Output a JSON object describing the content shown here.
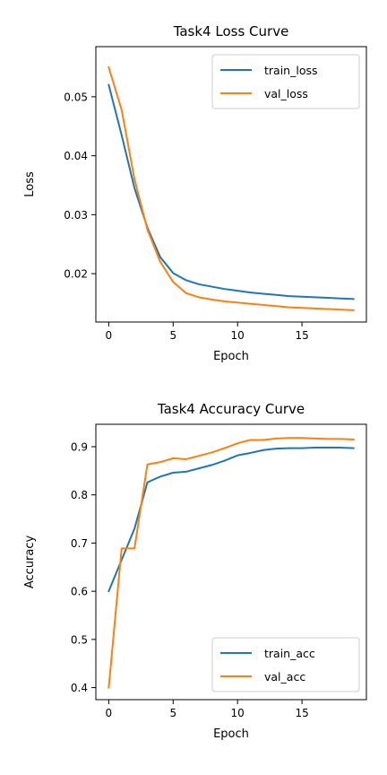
{
  "chart_data": [
    {
      "type": "line",
      "title": "Task4 Loss Curve",
      "xlabel": "Epoch",
      "ylabel": "Loss",
      "xlim": [
        -1,
        20
      ],
      "ylim": [
        0.0118,
        0.0585
      ],
      "xticks": [
        0,
        5,
        10,
        15
      ],
      "yticks": [
        0.02,
        0.03,
        0.04,
        0.05
      ],
      "ytick_labels": [
        "0.02",
        "0.03",
        "0.04",
        "0.05"
      ],
      "legend": "upper right",
      "x": [
        0,
        1,
        2,
        3,
        4,
        5,
        6,
        7,
        8,
        9,
        10,
        11,
        12,
        13,
        14,
        15,
        16,
        17,
        18,
        19
      ],
      "series": [
        {
          "name": "train_loss",
          "color": "#1f77b4",
          "values": [
            0.052,
            0.0435,
            0.0345,
            0.0278,
            0.0228,
            0.0201,
            0.0189,
            0.0182,
            0.0178,
            0.0174,
            0.0171,
            0.0168,
            0.0166,
            0.0164,
            0.0162,
            0.0161,
            0.016,
            0.0159,
            0.0158,
            0.0157
          ]
        },
        {
          "name": "val_loss",
          "color": "#ff7f0e",
          "values": [
            0.055,
            0.0478,
            0.036,
            0.0275,
            0.022,
            0.0186,
            0.0167,
            0.016,
            0.0156,
            0.0153,
            0.0151,
            0.0149,
            0.0147,
            0.0145,
            0.0143,
            0.0142,
            0.0141,
            0.014,
            0.0139,
            0.0138
          ]
        }
      ]
    },
    {
      "type": "line",
      "title": "Task4 Accuracy Curve",
      "xlabel": "Epoch",
      "ylabel": "Accuracy",
      "xlim": [
        -1,
        20
      ],
      "ylim": [
        0.375,
        0.9465
      ],
      "xticks": [
        0,
        5,
        10,
        15
      ],
      "yticks": [
        0.4,
        0.5,
        0.6,
        0.7,
        0.8,
        0.9
      ],
      "ytick_labels": [
        "0.4",
        "0.5",
        "0.6",
        "0.7",
        "0.8",
        "0.9"
      ],
      "legend": "lower right",
      "x": [
        0,
        1,
        2,
        3,
        4,
        5,
        6,
        7,
        8,
        9,
        10,
        11,
        12,
        13,
        14,
        15,
        16,
        17,
        18,
        19
      ],
      "series": [
        {
          "name": "train_acc",
          "color": "#1f77b4",
          "values": [
            0.6,
            0.665,
            0.73,
            0.826,
            0.838,
            0.846,
            0.848,
            0.855,
            0.862,
            0.871,
            0.882,
            0.887,
            0.893,
            0.896,
            0.897,
            0.897,
            0.898,
            0.898,
            0.898,
            0.897
          ]
        },
        {
          "name": "val_acc",
          "color": "#ff7f0e",
          "values": [
            0.4,
            0.689,
            0.689,
            0.863,
            0.868,
            0.876,
            0.874,
            0.881,
            0.888,
            0.897,
            0.907,
            0.914,
            0.914,
            0.917,
            0.918,
            0.918,
            0.917,
            0.916,
            0.916,
            0.915
          ]
        }
      ]
    }
  ]
}
